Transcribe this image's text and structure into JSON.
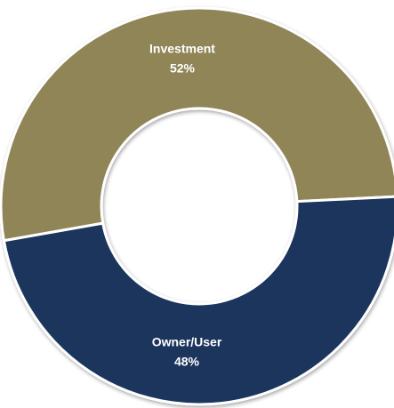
{
  "chart_data": {
    "type": "donut",
    "categories": [
      "Investment",
      "Owner/User"
    ],
    "values": [
      52,
      48
    ],
    "value_labels": [
      "52%",
      "48%"
    ],
    "colors": [
      "#8f8557",
      "#1b365d"
    ]
  }
}
